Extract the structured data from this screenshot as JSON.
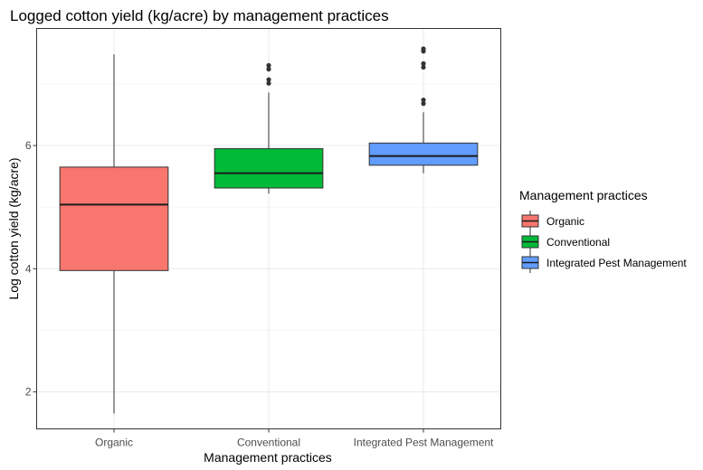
{
  "chart_data": {
    "type": "boxplot",
    "title": "Logged cotton yield (kg/acre) by management practices",
    "xlabel": "Management practices",
    "ylabel": "Log cotton yield (kg/acre)",
    "categories": [
      "Organic",
      "Conventional",
      "Integrated Pest Management"
    ],
    "ylim": [
      1.4,
      7.9
    ],
    "yticks": [
      2,
      4,
      6
    ],
    "grid": true,
    "legend": {
      "title": "Management practices",
      "placement": "right"
    },
    "colors": [
      "#F8766D",
      "#00BA38",
      "#619CFF"
    ],
    "boxes": [
      {
        "category": "Organic",
        "min": 1.65,
        "q1": 3.97,
        "median": 5.04,
        "q3": 5.65,
        "max": 7.48,
        "outliers": []
      },
      {
        "category": "Conventional",
        "min": 5.22,
        "q1": 5.31,
        "median": 5.55,
        "q3": 5.95,
        "max": 6.86,
        "outliers": [
          7.01,
          7.07,
          7.24,
          7.3
        ]
      },
      {
        "category": "Integrated Pest Management",
        "min": 5.55,
        "q1": 5.68,
        "median": 5.83,
        "q3": 6.04,
        "max": 6.54,
        "outliers": [
          6.68,
          6.74,
          7.27,
          7.33,
          7.53,
          7.57
        ]
      }
    ]
  }
}
